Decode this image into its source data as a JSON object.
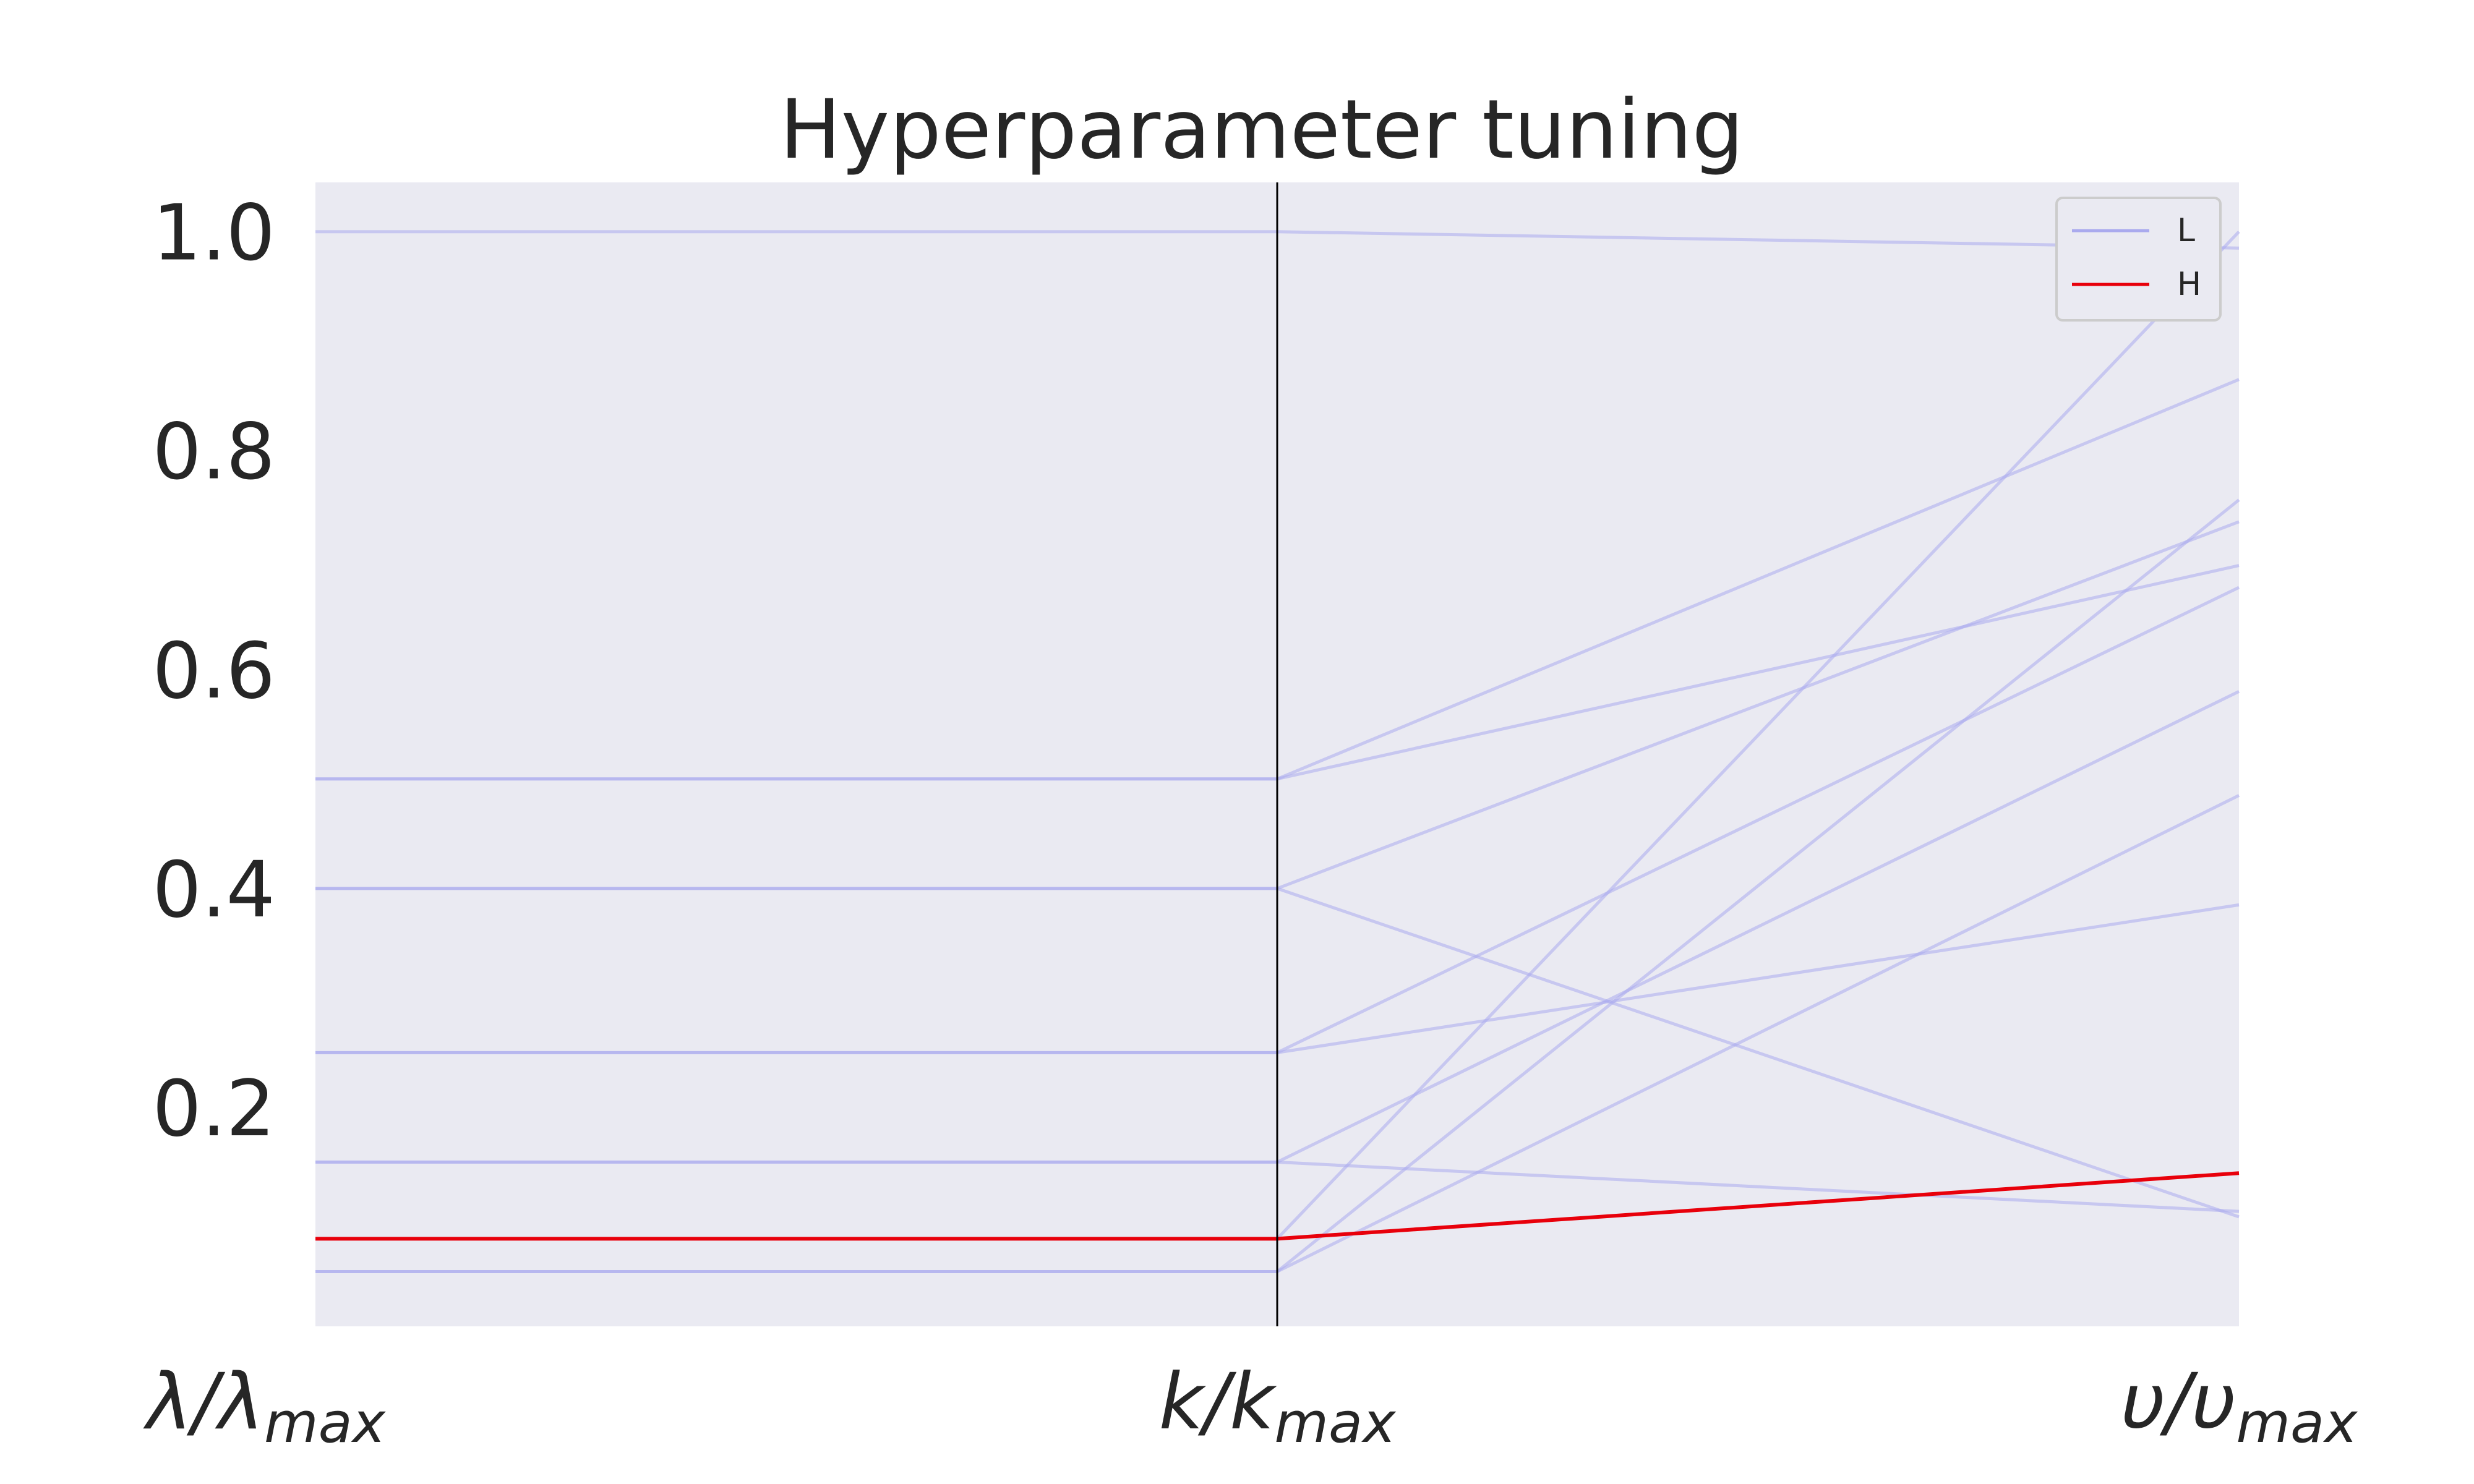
{
  "chart_data": {
    "type": "line",
    "subtype": "parallel-coordinates",
    "title": "Hyperparameter tuning",
    "axes": [
      {
        "label_main": "λ/λ",
        "label_sub": "max"
      },
      {
        "label_main": "k/k",
        "label_sub": "max"
      },
      {
        "label_main": "υ/υ",
        "label_sub": "max"
      }
    ],
    "ylim": [
      0.0,
      1.045
    ],
    "yticks": [
      0.2,
      0.4,
      0.6,
      0.8,
      1.0
    ],
    "ytick_labels": [
      "0.2",
      "0.4",
      "0.6",
      "0.8",
      "1.0"
    ],
    "grid": false,
    "background": "#eaeaf2",
    "axis_line_color": "#000000",
    "legend": {
      "placement": "top-right",
      "entries": [
        {
          "label": "L",
          "color": "#aaaaee"
        },
        {
          "label": "H",
          "color": "#e8000b"
        }
      ]
    },
    "series": [
      {
        "group": "L",
        "values": [
          1.0,
          1.0,
          0.985
        ]
      },
      {
        "group": "L",
        "values": [
          0.5,
          0.5,
          0.865
        ]
      },
      {
        "group": "L",
        "values": [
          0.5,
          0.5,
          0.695
        ]
      },
      {
        "group": "L",
        "values": [
          0.4,
          0.4,
          0.735
        ]
      },
      {
        "group": "L",
        "values": [
          0.4,
          0.4,
          0.1
        ]
      },
      {
        "group": "L",
        "values": [
          0.25,
          0.25,
          0.675
        ]
      },
      {
        "group": "L",
        "values": [
          0.25,
          0.25,
          0.385
        ]
      },
      {
        "group": "L",
        "values": [
          0.15,
          0.15,
          0.58
        ]
      },
      {
        "group": "L",
        "values": [
          0.15,
          0.15,
          0.105
        ]
      },
      {
        "group": "L",
        "values": [
          0.08,
          0.08,
          1.0
        ]
      },
      {
        "group": "L",
        "values": [
          0.05,
          0.05,
          0.755
        ]
      },
      {
        "group": "L",
        "values": [
          0.05,
          0.05,
          0.485
        ]
      },
      {
        "group": "H",
        "values": [
          0.08,
          0.08,
          0.14
        ]
      }
    ]
  }
}
